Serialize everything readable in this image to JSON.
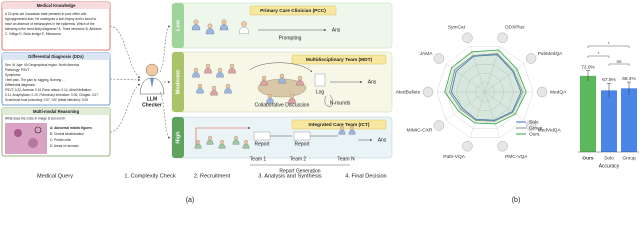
{
  "captions": [
    "(a)",
    "(b)"
  ],
  "query": {
    "label": "Medical Query",
    "cards": [
      {
        "title": "Medical Knowledge",
        "lines": [
          "A 19-year-old Caucasian male presents to your office with",
          "hypopigmented skin. He undergoes a skin biopsy and is found to",
          "have an absence of melanocytes in the epidermis. Which of the",
          "following is the most likely diagnosis? A. Tinea versicolor B. Albinism",
          "C. Vitiligo D. Solar lentigo E. Melanoma"
        ]
      },
      {
        "title": "Differential Diagnosis (DDx)",
        "lines": [
          "Sex: M, Age: 49 Geographical region: North America",
          "Pathology: PSVT",
          "Symptoms:",
          "I feel pain. The pain is: tugging, Burning ...",
          "Differential diagnosis:",
          "PSVT: 0.22, Anemia: 0.16 Panic attack: 0.14, Atrial fibrillation:",
          "0.11, Anaphylaxis: 0.10, Pulmonary embolism: 0.06, Chagas: 0.07,",
          "Scombroid food poisoning: 0.07, HIV (initial infection): 0.05"
        ]
      },
      {
        "title": "Multi-modal Reasoning",
        "lines": [
          "What does the circle in image D surround?",
          "A: Abnormal mitotic figures",
          "B: Central keratinization",
          "C: Prickle cells",
          "D: Areas of necrosis"
        ]
      }
    ]
  },
  "checker": [
    "LLM",
    "Checker"
  ],
  "steps": [
    "1. Complexity Check",
    "2. Recruitment",
    "3. Analysis and Synthesis",
    "4. Final Decision"
  ],
  "tiers": [
    {
      "level": "Low",
      "team": "Primary Care Clinician (PCC)",
      "labels": [
        "Prompting",
        "Ans"
      ]
    },
    {
      "level": "Moderate",
      "team": "Multidisciplinary Team (MDT)",
      "labels": [
        "Collaborative Discussion",
        "Log",
        "N-rounds",
        "Ans"
      ]
    },
    {
      "level": "High",
      "team": "Integrated Care Team (ICT)",
      "labels": [
        "Report",
        "Report",
        "Team 1",
        "Team 2",
        "Team N",
        "Report Generation",
        "Ans"
      ]
    }
  ],
  "chart_data": [
    {
      "type": "radar",
      "axes": [
        "SymCat",
        "DDXPlus",
        "PubMedQA",
        "MedQA",
        "MedVidQA",
        "PMC-VQA",
        "Path-VQA",
        "MIMIC-CXR",
        "MedBullets",
        "JAMA"
      ],
      "rlim": [
        0,
        100
      ],
      "rticks": [
        20,
        40,
        60,
        80,
        100
      ],
      "grid": true,
      "series": [
        {
          "name": "Solo",
          "color": "#3b6fd0",
          "values": [
            78,
            82,
            72,
            75,
            70,
            62,
            60,
            58,
            70,
            74
          ]
        },
        {
          "name": "Group",
          "color": "#8a8a8a",
          "values": [
            80,
            84,
            74,
            78,
            72,
            64,
            62,
            62,
            74,
            78
          ]
        },
        {
          "name": "Ours",
          "color": "#3aa34a",
          "values": [
            88,
            92,
            82,
            86,
            78,
            70,
            68,
            68,
            84,
            86
          ]
        }
      ]
    },
    {
      "type": "bar",
      "categories": [
        "Ours",
        "Solo",
        "Group"
      ],
      "xlabel": "Accuracy",
      "values": [
        72.0,
        67.8,
        68.4
      ],
      "value_labels": [
        "72.0%",
        "67.8%",
        "68.4%"
      ],
      "errors": [
        1.5,
        2.0,
        1.8
      ],
      "colors": [
        "#5cb85c",
        "#4a86e8",
        "#4a86e8"
      ],
      "ylim": [
        50,
        76
      ],
      "annotations": [
        "*",
        "*",
        "ns"
      ]
    }
  ]
}
